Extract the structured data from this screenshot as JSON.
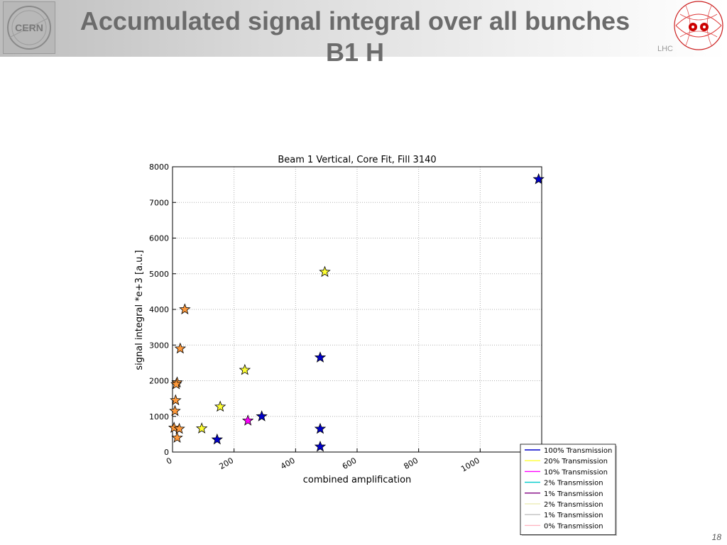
{
  "slide": {
    "title": "Accumulated signal integral over all bunches B1 H",
    "logo_left_text": "CERN",
    "logo_right_text": "LHC",
    "page_number": "18",
    "colors": {
      "title": "#6b6b6b",
      "header_gradient_start": "#bdbdbd"
    }
  },
  "chart_data": {
    "type": "scatter",
    "title": "Beam 1 Vertical, Core Fit, Fill 3140",
    "xlabel": "combined amplification",
    "ylabel": "signal integral *e+3 [a.u.]",
    "xlim": [
      0,
      1200
    ],
    "ylim": [
      0,
      8000
    ],
    "xticks": [
      0,
      200,
      400,
      600,
      800,
      1000
    ],
    "yticks": [
      0,
      1000,
      2000,
      3000,
      4000,
      5000,
      6000,
      7000,
      8000
    ],
    "grid": true,
    "marker": "star",
    "legend_position": "bottom-right",
    "legend": [
      {
        "label": "100% Transmission",
        "color": "#0000cc"
      },
      {
        "label": "20% Transmission",
        "color": "#ffff33"
      },
      {
        "label": "10% Transmission",
        "color": "#ff00ff"
      },
      {
        "label": "2% Transmission",
        "color": "#00cccc"
      },
      {
        "label": "1% Transmission",
        "color": "#800080"
      },
      {
        "label": "2% Transmission",
        "color": "#eeeebb"
      },
      {
        "label": "1% Transmission",
        "color": "#c0c0c0"
      },
      {
        "label": "0% Transmission",
        "color": "#ffb6c1"
      }
    ],
    "series": [
      {
        "name": "100% Transmission",
        "color": "#0000cc",
        "points": [
          [
            145,
            350
          ],
          [
            290,
            1000
          ],
          [
            480,
            2650
          ],
          [
            480,
            650
          ],
          [
            480,
            150
          ],
          [
            1190,
            7650
          ]
        ]
      },
      {
        "name": "20% Transmission",
        "color": "#ffff33",
        "points": [
          [
            495,
            5050
          ],
          [
            235,
            2300
          ],
          [
            155,
            1270
          ],
          [
            95,
            660
          ]
        ]
      },
      {
        "name": "10% Transmission",
        "color": "#ff00ff",
        "points": [
          [
            245,
            880
          ]
        ]
      },
      {
        "name": "",
        "color": "#ff9a3c",
        "points": [
          [
            40,
            4000
          ],
          [
            25,
            2900
          ],
          [
            15,
            1950
          ],
          [
            12,
            1900
          ],
          [
            10,
            1450
          ],
          [
            8,
            1150
          ],
          [
            5,
            680
          ],
          [
            22,
            650
          ],
          [
            15,
            400
          ]
        ]
      }
    ]
  }
}
